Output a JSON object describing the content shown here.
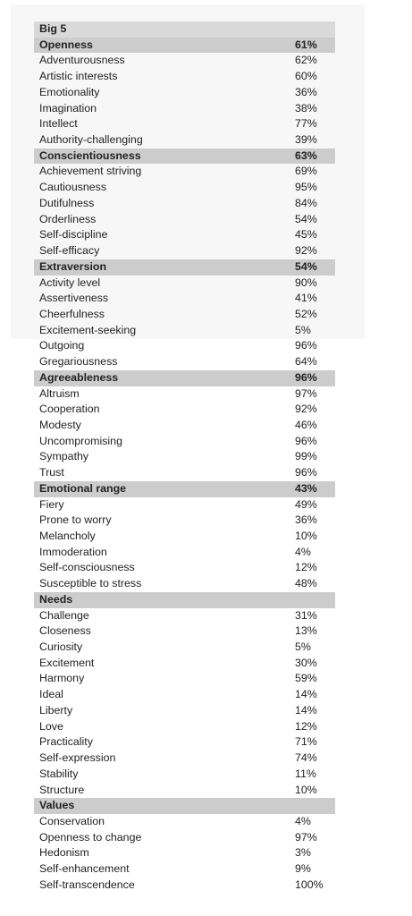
{
  "title": "Big 5",
  "sections": [
    {
      "name": "Openness",
      "value": "61%",
      "items": [
        {
          "label": "Adventurousness",
          "value": "62%"
        },
        {
          "label": "Artistic interests",
          "value": "60%"
        },
        {
          "label": "Emotionality",
          "value": "36%"
        },
        {
          "label": "Imagination",
          "value": "38%"
        },
        {
          "label": "Intellect",
          "value": "77%"
        },
        {
          "label": "Authority-challenging",
          "value": "39%"
        }
      ]
    },
    {
      "name": "Conscientiousness",
      "value": "63%",
      "items": [
        {
          "label": "Achievement striving",
          "value": "69%"
        },
        {
          "label": "Cautiousness",
          "value": "95%"
        },
        {
          "label": "Dutifulness",
          "value": "84%"
        },
        {
          "label": "Orderliness",
          "value": "54%"
        },
        {
          "label": "Self-discipline",
          "value": "45%"
        },
        {
          "label": "Self-efficacy",
          "value": "92%"
        }
      ]
    },
    {
      "name": "Extraversion",
      "value": "54%",
      "items": [
        {
          "label": "Activity level",
          "value": "90%"
        },
        {
          "label": "Assertiveness",
          "value": "41%"
        },
        {
          "label": "Cheerfulness",
          "value": "52%"
        },
        {
          "label": "Excitement-seeking",
          "value": "5%"
        },
        {
          "label": "Outgoing",
          "value": "96%"
        },
        {
          "label": "Gregariousness",
          "value": "64%"
        }
      ]
    },
    {
      "name": "Agreeableness",
      "value": "96%",
      "items": [
        {
          "label": "Altruism",
          "value": "97%"
        },
        {
          "label": "Cooperation",
          "value": "92%"
        },
        {
          "label": "Modesty",
          "value": "46%"
        },
        {
          "label": "Uncompromising",
          "value": "96%"
        },
        {
          "label": "Sympathy",
          "value": "99%"
        },
        {
          "label": "Trust",
          "value": "96%"
        }
      ]
    },
    {
      "name": "Emotional range",
      "value": "43%",
      "items": [
        {
          "label": "Fiery",
          "value": "49%"
        },
        {
          "label": "Prone to worry",
          "value": "36%"
        },
        {
          "label": "Melancholy",
          "value": "10%"
        },
        {
          "label": "Immoderation",
          "value": "4%"
        },
        {
          "label": "Self-consciousness",
          "value": "12%"
        },
        {
          "label": "Susceptible to stress",
          "value": "48%"
        }
      ]
    },
    {
      "name": "Needs",
      "value": "",
      "items": [
        {
          "label": "Challenge",
          "value": "31%"
        },
        {
          "label": "Closeness",
          "value": "13%"
        },
        {
          "label": "Curiosity",
          "value": "5%"
        },
        {
          "label": "Excitement",
          "value": "30%"
        },
        {
          "label": "Harmony",
          "value": "59%"
        },
        {
          "label": "Ideal",
          "value": "14%"
        },
        {
          "label": "Liberty",
          "value": "14%"
        },
        {
          "label": "Love",
          "value": "12%"
        },
        {
          "label": "Practicality",
          "value": "71%"
        },
        {
          "label": "Self-expression",
          "value": "74%"
        },
        {
          "label": "Stability",
          "value": "11%"
        },
        {
          "label": "Structure",
          "value": "10%"
        }
      ]
    },
    {
      "name": "Values",
      "value": "",
      "items": [
        {
          "label": "Conservation",
          "value": "4%"
        },
        {
          "label": "Openness to change",
          "value": "97%"
        },
        {
          "label": "Hedonism",
          "value": "3%"
        },
        {
          "label": "Self-enhancement",
          "value": "9%"
        },
        {
          "label": "Self-transcendence",
          "value": "100%"
        }
      ]
    }
  ]
}
